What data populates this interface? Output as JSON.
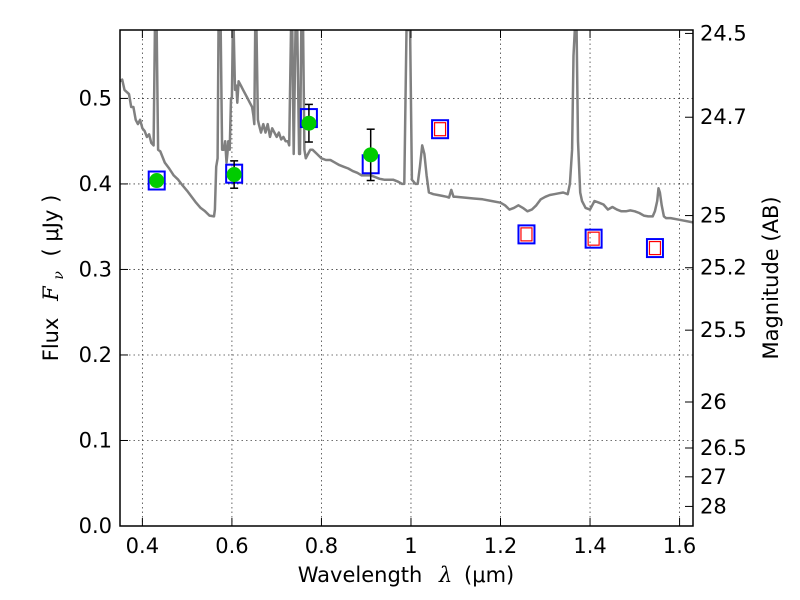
{
  "chart_data": {
    "type": "scatter",
    "xlabel_text": "Wavelength",
    "xlabel_symbol": "λ",
    "xlabel_unit": "(μm)",
    "ylabel_text": "Flux",
    "ylabel_symbol": "F",
    "ylabel_sub": "ν",
    "ylabel_unit": "( μJy )",
    "y2label": "Magnitude (AB)",
    "xlim": [
      0.35,
      1.63
    ],
    "ylim": [
      0.0,
      0.58
    ],
    "grid": true,
    "x_ticks": [
      0.4,
      0.6,
      0.8,
      1.0,
      1.2,
      1.4,
      1.6
    ],
    "x_tick_labels": [
      "0.4",
      "0.6",
      "0.8",
      "1",
      "1.2",
      "1.4",
      "1.6"
    ],
    "y_ticks": [
      0.0,
      0.1,
      0.2,
      0.3,
      0.4,
      0.5
    ],
    "y_tick_labels": [
      "0.0",
      "0.1",
      "0.2",
      "0.3",
      "0.4",
      "0.5"
    ],
    "mag_ticks": [
      {
        "label": "24.5",
        "flux": 0.576
      },
      {
        "label": "24.7",
        "flux": 0.478
      },
      {
        "label": "25",
        "flux": 0.363
      },
      {
        "label": "25.2",
        "flux": 0.302
      },
      {
        "label": "25.5",
        "flux": 0.229
      },
      {
        "label": "26",
        "flux": 0.145
      },
      {
        "label": "26.5",
        "flux": 0.0912
      },
      {
        "label": "27",
        "flux": 0.0575
      },
      {
        "label": "28",
        "flux": 0.0229
      }
    ],
    "series": [
      {
        "kind": "model_spectrum",
        "color": "#808080",
        "points": [
          [
            0.35,
            0.52
          ],
          [
            0.355,
            0.522
          ],
          [
            0.36,
            0.51
          ],
          [
            0.37,
            0.505
          ],
          [
            0.375,
            0.49
          ],
          [
            0.38,
            0.49
          ],
          [
            0.385,
            0.475
          ],
          [
            0.39,
            0.47
          ],
          [
            0.395,
            0.475
          ],
          [
            0.4,
            0.465
          ],
          [
            0.405,
            0.462
          ],
          [
            0.41,
            0.455
          ],
          [
            0.415,
            0.458
          ],
          [
            0.42,
            0.448
          ],
          [
            0.425,
            0.445
          ],
          [
            0.428,
            0.58
          ],
          [
            0.432,
            0.58
          ],
          [
            0.435,
            0.44
          ],
          [
            0.44,
            0.438
          ],
          [
            0.45,
            0.425
          ],
          [
            0.46,
            0.418
          ],
          [
            0.47,
            0.41
          ],
          [
            0.48,
            0.405
          ],
          [
            0.49,
            0.398
          ],
          [
            0.5,
            0.392
          ],
          [
            0.51,
            0.385
          ],
          [
            0.52,
            0.378
          ],
          [
            0.53,
            0.372
          ],
          [
            0.54,
            0.368
          ],
          [
            0.55,
            0.363
          ],
          [
            0.56,
            0.362
          ],
          [
            0.562,
            0.37
          ],
          [
            0.565,
            0.42
          ],
          [
            0.568,
            0.43
          ],
          [
            0.57,
            0.58
          ],
          [
            0.575,
            0.58
          ],
          [
            0.578,
            0.44
          ],
          [
            0.582,
            0.44
          ],
          [
            0.585,
            0.45
          ],
          [
            0.588,
            0.425
          ],
          [
            0.59,
            0.435
          ],
          [
            0.592,
            0.45
          ],
          [
            0.595,
            0.44
          ],
          [
            0.598,
            0.5
          ],
          [
            0.6,
            0.5
          ],
          [
            0.602,
            0.58
          ],
          [
            0.604,
            0.58
          ],
          [
            0.607,
            0.51
          ],
          [
            0.61,
            0.515
          ],
          [
            0.612,
            0.495
          ],
          [
            0.615,
            0.52
          ],
          [
            0.62,
            0.515
          ],
          [
            0.625,
            0.51
          ],
          [
            0.63,
            0.505
          ],
          [
            0.635,
            0.5
          ],
          [
            0.64,
            0.495
          ],
          [
            0.645,
            0.49
          ],
          [
            0.648,
            0.48
          ],
          [
            0.65,
            0.47
          ],
          [
            0.652,
            0.58
          ],
          [
            0.655,
            0.58
          ],
          [
            0.658,
            0.475
          ],
          [
            0.66,
            0.47
          ],
          [
            0.665,
            0.46
          ],
          [
            0.67,
            0.47
          ],
          [
            0.675,
            0.46
          ],
          [
            0.68,
            0.47
          ],
          [
            0.685,
            0.455
          ],
          [
            0.69,
            0.465
          ],
          [
            0.695,
            0.46
          ],
          [
            0.7,
            0.455
          ],
          [
            0.705,
            0.46
          ],
          [
            0.71,
            0.452
          ],
          [
            0.715,
            0.455
          ],
          [
            0.72,
            0.45
          ],
          [
            0.725,
            0.45
          ],
          [
            0.728,
            0.445
          ],
          [
            0.732,
            0.58
          ],
          [
            0.735,
            0.58
          ],
          [
            0.738,
            0.435
          ],
          [
            0.742,
            0.58
          ],
          [
            0.746,
            0.58
          ],
          [
            0.75,
            0.435
          ],
          [
            0.752,
            0.435
          ],
          [
            0.755,
            0.58
          ],
          [
            0.759,
            0.58
          ],
          [
            0.762,
            0.44
          ],
          [
            0.765,
            0.43
          ],
          [
            0.77,
            0.435
          ],
          [
            0.775,
            0.44
          ],
          [
            0.78,
            0.44
          ],
          [
            0.79,
            0.435
          ],
          [
            0.8,
            0.43
          ],
          [
            0.81,
            0.428
          ],
          [
            0.82,
            0.428
          ],
          [
            0.83,
            0.425
          ],
          [
            0.84,
            0.422
          ],
          [
            0.85,
            0.42
          ],
          [
            0.86,
            0.418
          ],
          [
            0.87,
            0.415
          ],
          [
            0.88,
            0.413
          ],
          [
            0.89,
            0.41
          ],
          [
            0.9,
            0.41
          ],
          [
            0.91,
            0.41
          ],
          [
            0.92,
            0.408
          ],
          [
            0.93,
            0.406
          ],
          [
            0.94,
            0.405
          ],
          [
            0.95,
            0.405
          ],
          [
            0.96,
            0.405
          ],
          [
            0.97,
            0.403
          ],
          [
            0.98,
            0.4
          ],
          [
            0.985,
            0.4
          ],
          [
            0.99,
            0.58
          ],
          [
            0.998,
            0.58
          ],
          [
            1.002,
            0.405
          ],
          [
            1.01,
            0.4
          ],
          [
            1.015,
            0.4
          ],
          [
            1.02,
            0.42
          ],
          [
            1.025,
            0.445
          ],
          [
            1.03,
            0.435
          ],
          [
            1.035,
            0.41
          ],
          [
            1.04,
            0.39
          ],
          [
            1.05,
            0.388
          ],
          [
            1.06,
            0.387
          ],
          [
            1.07,
            0.386
          ],
          [
            1.08,
            0.385
          ],
          [
            1.085,
            0.384
          ],
          [
            1.09,
            0.393
          ],
          [
            1.095,
            0.385
          ],
          [
            1.1,
            0.385
          ],
          [
            1.12,
            0.384
          ],
          [
            1.14,
            0.383
          ],
          [
            1.16,
            0.382
          ],
          [
            1.18,
            0.38
          ],
          [
            1.2,
            0.378
          ],
          [
            1.21,
            0.375
          ],
          [
            1.22,
            0.37
          ],
          [
            1.23,
            0.372
          ],
          [
            1.24,
            0.375
          ],
          [
            1.25,
            0.372
          ],
          [
            1.26,
            0.368
          ],
          [
            1.27,
            0.37
          ],
          [
            1.28,
            0.375
          ],
          [
            1.29,
            0.382
          ],
          [
            1.3,
            0.385
          ],
          [
            1.31,
            0.387
          ],
          [
            1.32,
            0.388
          ],
          [
            1.33,
            0.389
          ],
          [
            1.34,
            0.39
          ],
          [
            1.35,
            0.388
          ],
          [
            1.355,
            0.4
          ],
          [
            1.36,
            0.44
          ],
          [
            1.363,
            0.55
          ],
          [
            1.366,
            0.58
          ],
          [
            1.37,
            0.58
          ],
          [
            1.373,
            0.45
          ],
          [
            1.378,
            0.39
          ],
          [
            1.382,
            0.38
          ],
          [
            1.39,
            0.372
          ],
          [
            1.4,
            0.37
          ],
          [
            1.41,
            0.38
          ],
          [
            1.42,
            0.378
          ],
          [
            1.43,
            0.376
          ],
          [
            1.44,
            0.37
          ],
          [
            1.45,
            0.373
          ],
          [
            1.46,
            0.37
          ],
          [
            1.47,
            0.368
          ],
          [
            1.48,
            0.368
          ],
          [
            1.49,
            0.369
          ],
          [
            1.5,
            0.368
          ],
          [
            1.51,
            0.366
          ],
          [
            1.52,
            0.363
          ],
          [
            1.53,
            0.362
          ],
          [
            1.54,
            0.362
          ],
          [
            1.545,
            0.368
          ],
          [
            1.55,
            0.38
          ],
          [
            1.553,
            0.395
          ],
          [
            1.556,
            0.39
          ],
          [
            1.56,
            0.375
          ],
          [
            1.565,
            0.362
          ],
          [
            1.57,
            0.36
          ],
          [
            1.58,
            0.36
          ],
          [
            1.6,
            0.358
          ],
          [
            1.63,
            0.355
          ]
        ]
      },
      {
        "kind": "model_band_squares",
        "edge_color": "#0000ff",
        "x": [
          0.432,
          0.605,
          0.772,
          0.91,
          1.065,
          1.258,
          1.408,
          1.545
        ],
        "y": [
          0.404,
          0.412,
          0.477,
          0.423,
          0.464,
          0.341,
          0.336,
          0.325
        ]
      },
      {
        "kind": "observed_squares",
        "edge_color": "#ff0000",
        "x": [
          1.065,
          1.258,
          1.408,
          1.545
        ],
        "y": [
          0.464,
          0.341,
          0.336,
          0.325
        ]
      },
      {
        "kind": "observed_circles",
        "color": "#00cc00",
        "x": [
          0.432,
          0.605,
          0.772,
          0.91
        ],
        "y": [
          0.404,
          0.411,
          0.471,
          0.434
        ],
        "yerr": [
          null,
          0.016,
          0.022,
          0.03
        ]
      }
    ]
  }
}
